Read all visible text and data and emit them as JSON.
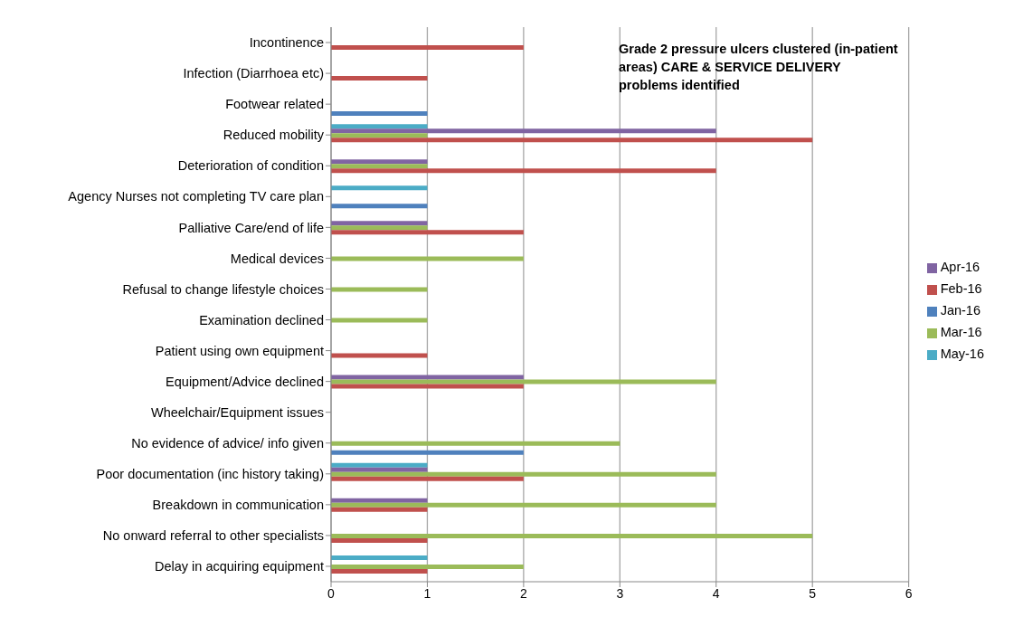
{
  "chart_data": {
    "type": "bar",
    "orientation": "horizontal",
    "title": "Grade 2 pressure ulcers clustered (in-patient areas) CARE & SERVICE DELIVERY problems identified",
    "categories": [
      "Incontinence",
      "Infection (Diarrhoea etc)",
      "Footwear related",
      "Reduced mobility",
      "Deterioration of condition",
      "Agency Nurses not completing TV care plan",
      "Palliative Care/end of life",
      "Medical devices",
      "Refusal to change lifestyle choices",
      "Examination declined",
      "Patient using own equipment",
      "Equipment/Advice declined",
      "Wheelchair/Equipment issues",
      "No evidence of advice/ info given",
      "Poor documentation (inc history taking)",
      "Breakdown in communication",
      "No onward referral to other specialists",
      "Delay in acquiring equipment"
    ],
    "series": [
      {
        "name": "Jan-16",
        "color": "#4f81bd",
        "values": [
          null,
          null,
          1,
          null,
          null,
          1,
          null,
          null,
          null,
          null,
          null,
          null,
          null,
          2,
          null,
          null,
          null,
          null
        ]
      },
      {
        "name": "Feb-16",
        "color": "#c0504d",
        "values": [
          2,
          1,
          null,
          5,
          4,
          null,
          2,
          null,
          null,
          null,
          1,
          2,
          null,
          null,
          2,
          1,
          1,
          1
        ]
      },
      {
        "name": "Mar-16",
        "color": "#9bbb59",
        "values": [
          null,
          null,
          null,
          1,
          1,
          null,
          1,
          2,
          1,
          1,
          null,
          4,
          null,
          3,
          4,
          4,
          5,
          2
        ]
      },
      {
        "name": "Apr-16",
        "color": "#8064a2",
        "values": [
          null,
          null,
          null,
          4,
          1,
          null,
          1,
          null,
          null,
          null,
          null,
          2,
          null,
          null,
          1,
          1,
          null,
          null
        ]
      },
      {
        "name": "May-16",
        "color": "#4bacc6",
        "values": [
          null,
          null,
          null,
          1,
          null,
          1,
          null,
          null,
          null,
          null,
          null,
          null,
          null,
          null,
          1,
          null,
          null,
          1
        ]
      }
    ],
    "xlim": [
      0,
      6
    ],
    "xticks": [
      0,
      1,
      2,
      3,
      4,
      5,
      6
    ],
    "grid": "x",
    "legend": "right"
  }
}
